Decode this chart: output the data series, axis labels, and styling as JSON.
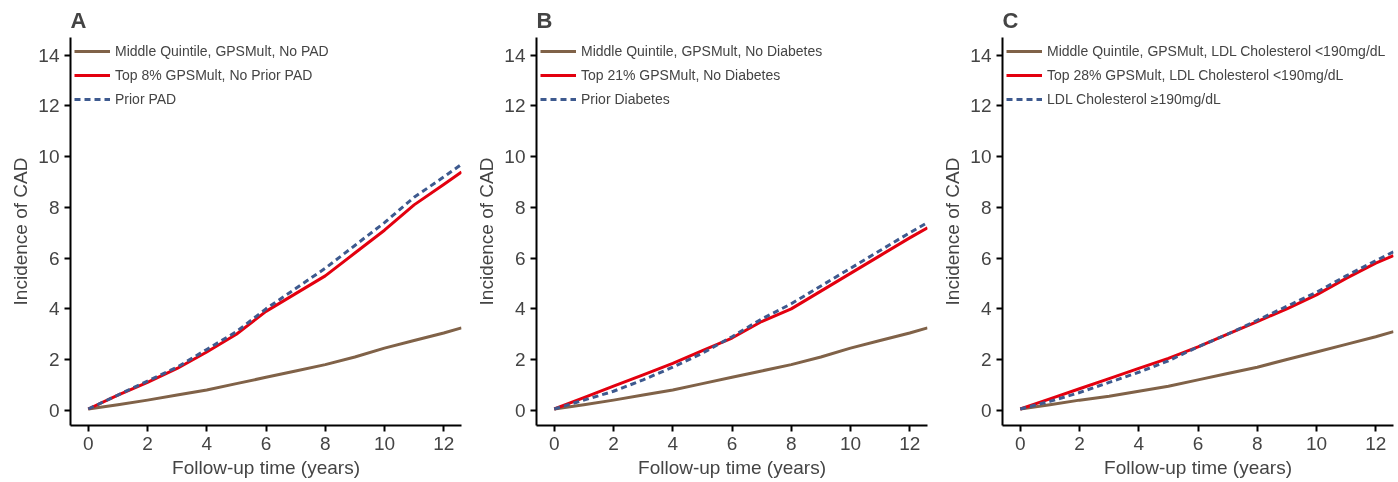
{
  "chart_data": [
    {
      "type": "line",
      "title": "A",
      "xlabel": "Follow-up time (years)",
      "ylabel": "Incidence of CAD",
      "x": [
        0,
        1,
        2,
        3,
        4,
        5,
        6,
        7,
        8,
        9,
        10,
        11,
        12,
        12.6
      ],
      "xlim": [
        -0.6,
        12.6
      ],
      "ylim": [
        -0.6,
        14.7
      ],
      "xticks": [
        0,
        2,
        4,
        6,
        8,
        10,
        12
      ],
      "yticks": [
        0,
        2,
        4,
        6,
        8,
        10,
        12,
        14
      ],
      "grid": false,
      "legend": "top left",
      "marker": "none",
      "series": [
        {
          "name": "Middle Quintile, GPSMult, No PAD",
          "color": "#806248",
          "line_style": "solid",
          "values": [
            0.05,
            0.22,
            0.4,
            0.6,
            0.8,
            1.05,
            1.3,
            1.55,
            1.8,
            2.1,
            2.45,
            2.75,
            3.05,
            3.25
          ]
        },
        {
          "name": "Top 8% GPSMult, No Prior PAD",
          "color": "#e3000f",
          "line_style": "solid",
          "values": [
            0.05,
            0.6,
            1.1,
            1.65,
            2.3,
            3.0,
            3.9,
            4.6,
            5.3,
            6.2,
            7.1,
            8.1,
            8.9,
            9.4
          ]
        },
        {
          "name": "Prior PAD",
          "color": "#3e5a8f",
          "line_style": "dashed",
          "values": [
            0.05,
            0.6,
            1.15,
            1.7,
            2.4,
            3.1,
            4.0,
            4.8,
            5.6,
            6.5,
            7.4,
            8.4,
            9.2,
            9.7
          ]
        }
      ]
    },
    {
      "type": "line",
      "title": "B",
      "xlabel": "Follow-up time (years)",
      "ylabel": "Incidence of CAD",
      "x": [
        0,
        1,
        2,
        3,
        4,
        5,
        6,
        7,
        8,
        9,
        10,
        11,
        12,
        12.6
      ],
      "xlim": [
        -0.6,
        12.6
      ],
      "ylim": [
        -0.6,
        14.7
      ],
      "xticks": [
        0,
        2,
        4,
        6,
        8,
        10,
        12
      ],
      "yticks": [
        0,
        2,
        4,
        6,
        8,
        10,
        12,
        14
      ],
      "grid": false,
      "legend": "top left",
      "marker": "none",
      "series": [
        {
          "name": "Middle Quintile, GPSMult, No Diabetes",
          "color": "#806248",
          "line_style": "solid",
          "values": [
            0.05,
            0.22,
            0.4,
            0.6,
            0.8,
            1.05,
            1.3,
            1.55,
            1.8,
            2.1,
            2.45,
            2.75,
            3.05,
            3.25
          ]
        },
        {
          "name": "Top 21% GPSMult, No Diabetes",
          "color": "#e3000f",
          "line_style": "solid",
          "values": [
            0.05,
            0.5,
            0.95,
            1.4,
            1.85,
            2.35,
            2.85,
            3.5,
            4.0,
            4.7,
            5.4,
            6.1,
            6.8,
            7.2
          ]
        },
        {
          "name": "Prior Diabetes",
          "color": "#3e5a8f",
          "line_style": "dashed",
          "values": [
            0.05,
            0.4,
            0.75,
            1.2,
            1.7,
            2.25,
            2.9,
            3.6,
            4.2,
            4.9,
            5.6,
            6.3,
            7.0,
            7.4
          ]
        }
      ]
    },
    {
      "type": "line",
      "title": "C",
      "xlabel": "Follow-up time (years)",
      "ylabel": "Incidence of CAD",
      "x": [
        0,
        1,
        2,
        3,
        4,
        5,
        6,
        7,
        8,
        9,
        10,
        11,
        12,
        12.6
      ],
      "xlim": [
        -0.6,
        12.6
      ],
      "ylim": [
        -0.6,
        14.7
      ],
      "xticks": [
        0,
        2,
        4,
        6,
        8,
        10,
        12
      ],
      "yticks": [
        0,
        2,
        4,
        6,
        8,
        10,
        12,
        14
      ],
      "grid": false,
      "legend": "top left",
      "marker": "none",
      "series": [
        {
          "name": "Middle Quintile, GPSMult, LDL Cholesterol <190mg/dL",
          "color": "#806248",
          "line_style": "solid",
          "values": [
            0.05,
            0.22,
            0.4,
            0.55,
            0.75,
            0.95,
            1.2,
            1.45,
            1.7,
            2.0,
            2.3,
            2.6,
            2.9,
            3.1
          ]
        },
        {
          "name": "Top 28% GPSMult, LDL Cholesterol <190mg/dL",
          "color": "#e3000f",
          "line_style": "solid",
          "values": [
            0.05,
            0.45,
            0.85,
            1.25,
            1.65,
            2.05,
            2.5,
            3.0,
            3.5,
            4.0,
            4.55,
            5.2,
            5.8,
            6.1
          ]
        },
        {
          "name": "LDL Cholesterol ≥190mg/dL",
          "color": "#3e5a8f",
          "line_style": "dashed",
          "values": [
            0.05,
            0.35,
            0.7,
            1.1,
            1.5,
            1.95,
            2.5,
            3.0,
            3.55,
            4.1,
            4.65,
            5.3,
            5.9,
            6.25
          ]
        }
      ]
    }
  ]
}
